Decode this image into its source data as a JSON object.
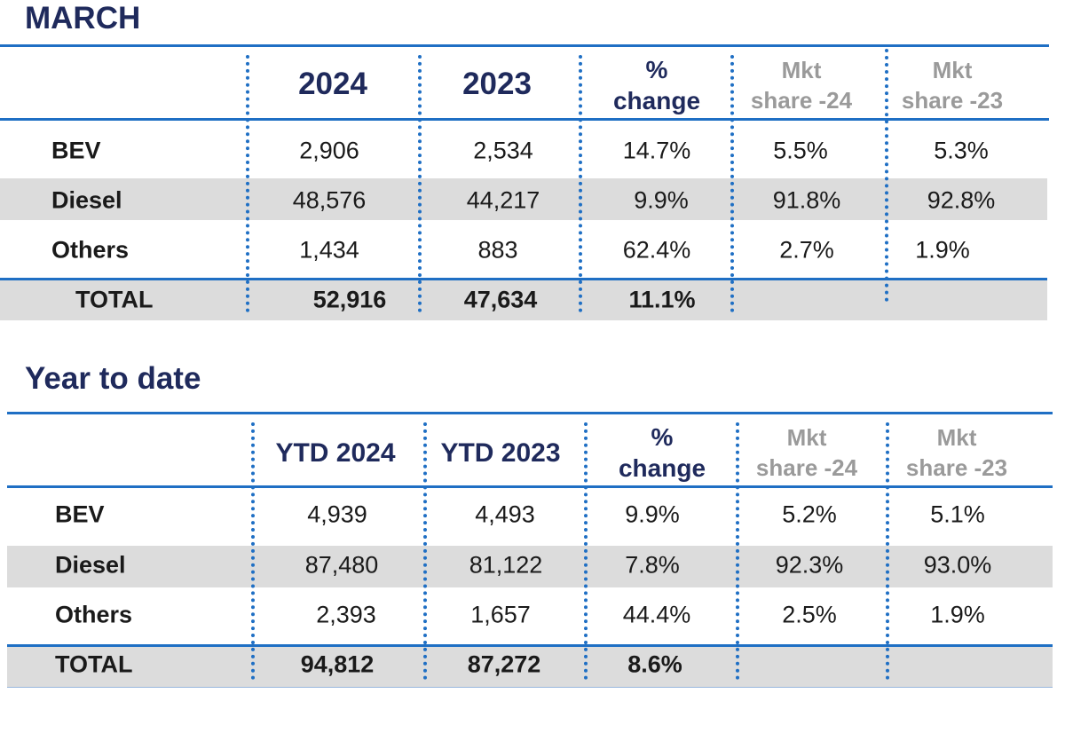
{
  "march": {
    "title": "MARCH",
    "headers": {
      "y1": "2024",
      "y2": "2023",
      "pct_sym": "%",
      "pct_word": "change",
      "mkt1_a": "Mkt",
      "mkt1_b": "share -24",
      "mkt2_a": "Mkt",
      "mkt2_b": "share -23"
    },
    "rows": [
      {
        "label": "BEV",
        "c1": "2,906",
        "c2": "2,534",
        "c3": "14.7%",
        "c4": "5.5%",
        "c5": "5.3%"
      },
      {
        "label": "Diesel",
        "c1": "48,576",
        "c2": "44,217",
        "c3": "9.9%",
        "c4": "91.8%",
        "c5": "92.8%"
      },
      {
        "label": "Others",
        "c1": "1,434",
        "c2": "883",
        "c3": "62.4%",
        "c4": "2.7%",
        "c5": "1.9%"
      }
    ],
    "total": {
      "label": "TOTAL",
      "c1": "52,916",
      "c2": "47,634",
      "c3": "11.1%"
    }
  },
  "ytd": {
    "title": "Year to date",
    "headers": {
      "y1": "YTD 2024",
      "y2": "YTD 2023",
      "pct_sym": "%",
      "pct_word": "change",
      "mkt1_a": "Mkt",
      "mkt1_b": "share -24",
      "mkt2_a": "Mkt",
      "mkt2_b": "share -23"
    },
    "rows": [
      {
        "label": "BEV",
        "c1": "4,939",
        "c2": "4,493",
        "c3": "9.9%",
        "c4": "5.2%",
        "c5": "5.1%"
      },
      {
        "label": "Diesel",
        "c1": "87,480",
        "c2": "81,122",
        "c3": "7.8%",
        "c4": "92.3%",
        "c5": "93.0%"
      },
      {
        "label": "Others",
        "c1": "2,393",
        "c2": "1,657",
        "c3": "44.4%",
        "c4": "2.5%",
        "c5": "1.9%"
      }
    ],
    "total": {
      "label": "TOTAL",
      "c1": "94,812",
      "c2": "87,272",
      "c3": "8.6%"
    }
  },
  "colors": {
    "title": "#1f2a5c",
    "rule": "#1f6fc4",
    "band": "#dcdcdc",
    "muted": "#9a9a9a"
  }
}
